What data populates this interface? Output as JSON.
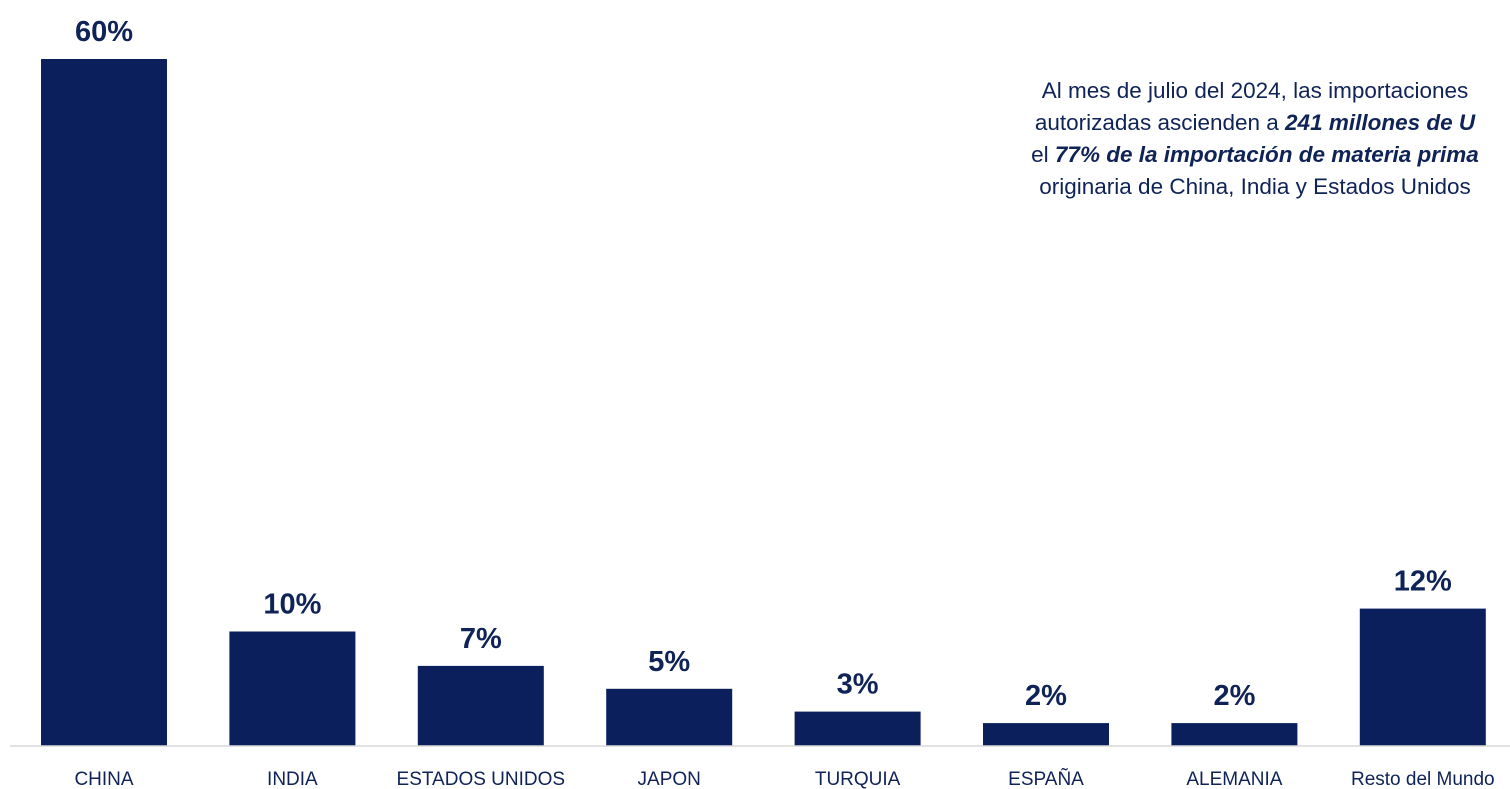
{
  "chart_data": {
    "type": "bar",
    "categories": [
      "CHINA",
      "INDIA",
      "ESTADOS UNIDOS",
      "JAPON",
      "TURQUIA",
      "ESPAÑA",
      "ALEMANIA",
      "Resto del Mundo"
    ],
    "values": [
      60,
      10,
      7,
      5,
      3,
      2,
      2,
      12
    ],
    "data_labels": [
      "60%",
      "10%",
      "7%",
      "5%",
      "3%",
      "2%",
      "2%",
      "12%"
    ],
    "title": "",
    "xlabel": "",
    "ylabel": "",
    "ylim": [
      0,
      60
    ],
    "grid": false,
    "bar_color": "#0a1f5c",
    "axis_color": "#d9d9d9"
  },
  "annotation": {
    "line1": "Al mes de julio del 2024, las importaciones",
    "line2_pre": "autorizadas ascienden a ",
    "line2_em": "241 millones de U",
    "line3_pre": "el ",
    "line3_em": "77% de la importación de materia prima",
    "line4": "originaria de China, India y Estados Unidos"
  }
}
